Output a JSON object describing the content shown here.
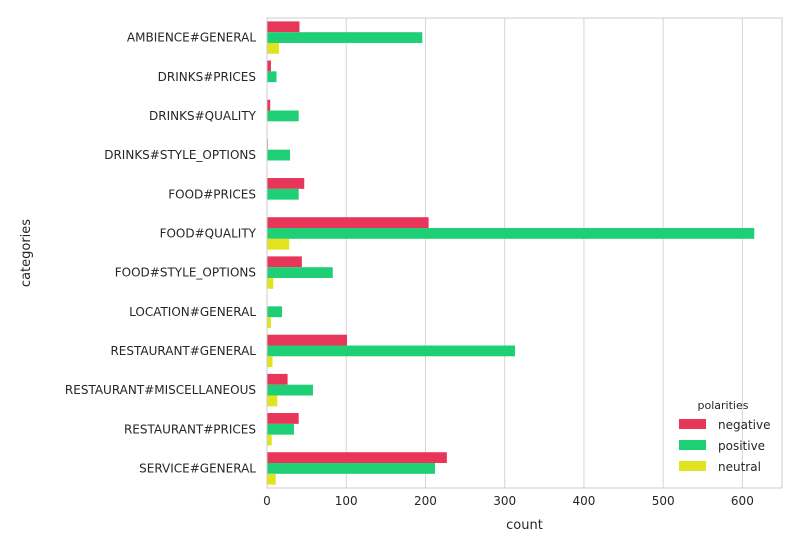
{
  "chart_data": {
    "type": "bar",
    "orientation": "horizontal",
    "xlabel": "count",
    "ylabel": "categories",
    "xlim": [
      0,
      650
    ],
    "xticks": [
      0,
      100,
      200,
      300,
      400,
      500,
      600
    ],
    "grid": true,
    "legend": {
      "title": "polarities",
      "placement": "bottom-right"
    },
    "categories": [
      "AMBIENCE#GENERAL",
      "DRINKS#PRICES",
      "DRINKS#QUALITY",
      "DRINKS#STYLE_OPTIONS",
      "FOOD#PRICES",
      "FOOD#QUALITY",
      "FOOD#STYLE_OPTIONS",
      "LOCATION#GENERAL",
      "RESTAURANT#GENERAL",
      "RESTAURANT#MISCELLANEOUS",
      "RESTAURANT#PRICES",
      "SERVICE#GENERAL"
    ],
    "series": [
      {
        "name": "negative",
        "color": "#e8355a",
        "values": [
          41,
          5,
          4,
          1,
          47,
          204,
          44,
          0,
          101,
          26,
          40,
          227
        ]
      },
      {
        "name": "positive",
        "color": "#1fcf75",
        "values": [
          196,
          12,
          40,
          29,
          40,
          615,
          83,
          19,
          313,
          58,
          34,
          212
        ]
      },
      {
        "name": "neutral",
        "color": "#e1e31f",
        "values": [
          15,
          0,
          0,
          0,
          0,
          28,
          8,
          5,
          7,
          13,
          6,
          11
        ]
      }
    ]
  }
}
